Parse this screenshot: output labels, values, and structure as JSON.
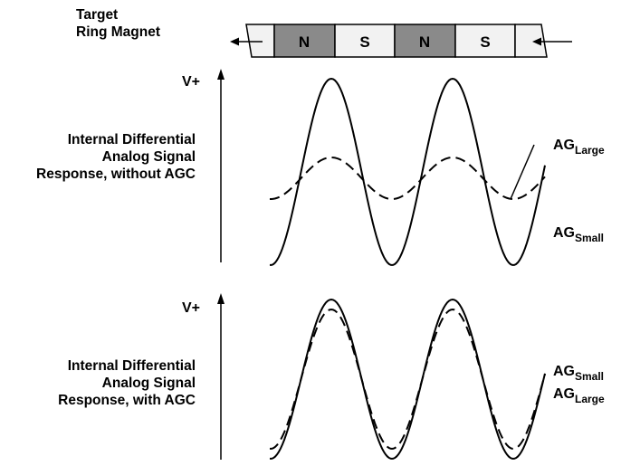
{
  "header": {
    "target_label_line1": "Target",
    "target_label_line2": "Ring Magnet"
  },
  "magnet": {
    "poles": [
      "N",
      "S",
      "N",
      "S"
    ],
    "north_color": "#8a8a8a",
    "south_color": "#f2f2f2",
    "end_color": "#f2f2f2"
  },
  "panel_top": {
    "axis_label": "V+",
    "description_lines": [
      "Internal Differential",
      "Analog Signal",
      "Response, without AGC"
    ],
    "curve_large": {
      "base": "AG",
      "sub": "Large"
    },
    "curve_small": {
      "base": "AG",
      "sub": "Small"
    }
  },
  "panel_bottom": {
    "axis_label": "V+",
    "description_lines": [
      "Internal Differential",
      "Analog Signal",
      "Response, with AGC"
    ],
    "curve_small": {
      "base": "AG",
      "sub": "Small"
    },
    "curve_large": {
      "base": "AG",
      "sub": "Large"
    }
  }
}
